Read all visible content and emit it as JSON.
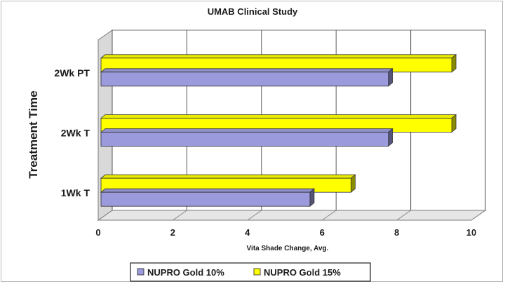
{
  "chart_data": {
    "type": "bar",
    "orientation": "horizontal",
    "style": "3d",
    "title": "UMAB Clinical Study",
    "xlabel": "Vita Shade Change, Avg.",
    "ylabel": "Treatment Time",
    "categories": [
      "1Wk T",
      "2Wk T",
      "2Wk PT"
    ],
    "series": [
      {
        "name": "NUPRO Gold 10%",
        "values": [
          5.6,
          7.7,
          7.7
        ],
        "color": "#9a9adc"
      },
      {
        "name": "NUPRO Gold 15%",
        "values": [
          6.7,
          9.4,
          9.4
        ],
        "color": "#ffff00"
      }
    ],
    "xlim": [
      0,
      10
    ],
    "xticks": [
      "0",
      "2",
      "4",
      "6",
      "8",
      "10"
    ],
    "grid": true,
    "legend": "bottom"
  }
}
